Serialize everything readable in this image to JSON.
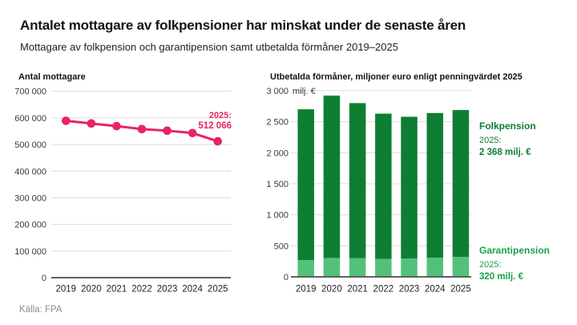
{
  "page": {
    "title": "Antalet mottagare av folkpensioner har minskat under de senaste åren",
    "subtitle": "Mottagare av folkpension och garantipension samt utbetalda förmåner 2019–2025",
    "source": "Källa: FPA",
    "background": "#ffffff"
  },
  "chart_data": [
    {
      "id": "antal-mottagare",
      "type": "line",
      "title": "Antal mottagare",
      "categories": [
        "2019",
        "2020",
        "2021",
        "2022",
        "2023",
        "2024",
        "2025"
      ],
      "values": [
        589000,
        579000,
        569000,
        558000,
        552000,
        543000,
        512066
      ],
      "ylim": [
        0,
        700000
      ],
      "yticks": [
        {
          "v": 700000,
          "label": "700 000"
        },
        {
          "v": 600000,
          "label": "600 000"
        },
        {
          "v": 500000,
          "label": "500 000"
        },
        {
          "v": 400000,
          "label": "400 000"
        },
        {
          "v": 300000,
          "label": "300 000"
        },
        {
          "v": 200000,
          "label": "200 000"
        },
        {
          "v": 100000,
          "label": "100 000"
        },
        {
          "v": 0,
          "label": "0"
        }
      ],
      "grid": true,
      "legend": "none",
      "line_color": "#e9245e",
      "annotation": {
        "year": "2025:",
        "value": "512 066"
      }
    },
    {
      "id": "utbetalda-formaner",
      "type": "bar",
      "subtype": "stacked",
      "title": "Utbetalda förmåner, miljoner euro enligt penningvärdet 2025",
      "categories": [
        "2019",
        "2020",
        "2021",
        "2022",
        "2023",
        "2024",
        "2025"
      ],
      "series": [
        {
          "name": "Folkpension",
          "color": "#0e7e33",
          "values": [
            2430,
            2615,
            2500,
            2340,
            2285,
            2330,
            2368
          ]
        },
        {
          "name": "Garantipension",
          "color": "#53c17c",
          "values": [
            270,
            305,
            300,
            290,
            295,
            310,
            320
          ]
        }
      ],
      "ylim": [
        0,
        3000
      ],
      "yticks": [
        {
          "v": 3000,
          "label": "3 000",
          "suffix": "milj. €"
        },
        {
          "v": 2500,
          "label": "2 500"
        },
        {
          "v": 2000,
          "label": "2 000"
        },
        {
          "v": 1500,
          "label": "1 500"
        },
        {
          "v": 1000,
          "label": "1 000"
        },
        {
          "v": 500,
          "label": "500"
        },
        {
          "v": 0,
          "label": "0"
        }
      ],
      "grid": true,
      "legend": "annotated-right",
      "annotations": {
        "folkpension": {
          "title": "Folkpension",
          "year": "2025:",
          "value": "2 368 milj. €",
          "color": "#0e7e33"
        },
        "garantipension": {
          "title": "Garantipension",
          "year": "2025:",
          "value": "320 milj. €",
          "color": "#19a24a"
        }
      }
    }
  ]
}
